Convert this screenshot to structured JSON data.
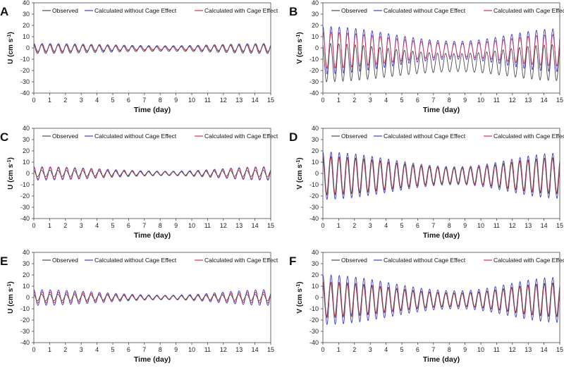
{
  "legend": [
    "Observed",
    "Calculated without Cage Effect",
    "Calculated with Cage Effect"
  ],
  "colors": {
    "observed": "#4d4d4d",
    "without": "#3b3bd6",
    "with": "#d8344f",
    "axis": "#444444"
  },
  "chart_data": [
    {
      "panel": "A",
      "type": "line",
      "xlabel": "Time (day)",
      "ylabel": "U (cm s-1)",
      "xlim": [
        0,
        15
      ],
      "ylim": [
        -40,
        40
      ],
      "xticks": [
        0,
        1,
        2,
        3,
        4,
        5,
        6,
        7,
        8,
        9,
        10,
        11,
        12,
        13,
        14,
        15
      ],
      "yticks": [
        -40,
        -30,
        -20,
        -10,
        0,
        10,
        20,
        30,
        40
      ],
      "series": [
        {
          "name": "Observed",
          "mean": -1,
          "amp_start": 4,
          "amp_mid": 2,
          "amp_end": 4,
          "period_days": 0.52
        },
        {
          "name": "Calculated without Cage Effect",
          "mean": 0,
          "amp_start": 4,
          "amp_mid": 2,
          "amp_end": 4,
          "period_days": 0.52
        },
        {
          "name": "Calculated with Cage Effect",
          "mean": 0,
          "amp_start": 3,
          "amp_mid": 1.5,
          "amp_end": 3,
          "period_days": 0.52
        }
      ]
    },
    {
      "panel": "B",
      "type": "line",
      "xlabel": "Time (day)",
      "ylabel": "V (cm s-1)",
      "xlim": [
        0,
        15
      ],
      "ylim": [
        -40,
        40
      ],
      "xticks": [
        0,
        1,
        2,
        3,
        4,
        5,
        6,
        7,
        8,
        9,
        10,
        11,
        12,
        13,
        14,
        15
      ],
      "yticks": [
        -40,
        -30,
        -20,
        -10,
        0,
        10,
        20,
        30,
        40
      ],
      "series": [
        {
          "name": "Observed",
          "mean": -13,
          "amp_start": 17,
          "amp_mid": 8,
          "amp_end": 16,
          "period_days": 0.52
        },
        {
          "name": "Calculated without Cage Effect",
          "mean": -2,
          "amp_start": 21,
          "amp_mid": 8,
          "amp_end": 19,
          "period_days": 0.52
        },
        {
          "name": "Calculated with Cage Effect",
          "mean": -2,
          "amp_start": 16,
          "amp_mid": 6,
          "amp_end": 14,
          "period_days": 0.52
        }
      ]
    },
    {
      "panel": "C",
      "type": "line",
      "xlabel": "Time (day)",
      "ylabel": "U (cm s-1)",
      "xlim": [
        0,
        15
      ],
      "ylim": [
        -40,
        40
      ],
      "xticks": [
        0,
        1,
        2,
        3,
        4,
        5,
        6,
        7,
        8,
        9,
        10,
        11,
        12,
        13,
        14,
        15
      ],
      "yticks": [
        -40,
        -30,
        -20,
        -10,
        0,
        10,
        20,
        30,
        40
      ],
      "series": [
        {
          "name": "Observed",
          "mean": 0,
          "amp_start": 3,
          "amp_mid": 1.5,
          "amp_end": 3,
          "period_days": 0.52
        },
        {
          "name": "Calculated without Cage Effect",
          "mean": 0,
          "amp_start": 6,
          "amp_mid": 2,
          "amp_end": 6,
          "period_days": 0.52
        },
        {
          "name": "Calculated with Cage Effect",
          "mean": 0,
          "amp_start": 5,
          "amp_mid": 1.5,
          "amp_end": 5,
          "period_days": 0.52
        }
      ]
    },
    {
      "panel": "D",
      "type": "line",
      "xlabel": "Time (day)",
      "ylabel": "V (cm s-1)",
      "xlim": [
        0,
        15
      ],
      "ylim": [
        -40,
        40
      ],
      "xticks": [
        0,
        1,
        2,
        3,
        4,
        5,
        6,
        7,
        8,
        9,
        10,
        11,
        12,
        13,
        14,
        15
      ],
      "yticks": [
        -40,
        -30,
        -20,
        -10,
        0,
        10,
        20,
        30,
        40
      ],
      "series": [
        {
          "name": "Observed",
          "mean": -2,
          "amp_start": 17,
          "amp_mid": 7,
          "amp_end": 16,
          "period_days": 0.52
        },
        {
          "name": "Calculated without Cage Effect",
          "mean": -2,
          "amp_start": 21,
          "amp_mid": 8,
          "amp_end": 20,
          "period_days": 0.52
        },
        {
          "name": "Calculated with Cage Effect",
          "mean": -2,
          "amp_start": 17,
          "amp_mid": 7,
          "amp_end": 16,
          "period_days": 0.52
        }
      ]
    },
    {
      "panel": "E",
      "type": "line",
      "xlabel": "Time (day)",
      "ylabel": "U (cm s-1)",
      "xlim": [
        0,
        15
      ],
      "ylim": [
        -40,
        40
      ],
      "xticks": [
        0,
        1,
        2,
        3,
        4,
        5,
        6,
        7,
        8,
        9,
        10,
        11,
        12,
        13,
        14,
        15
      ],
      "yticks": [
        -40,
        -30,
        -20,
        -10,
        0,
        10,
        20,
        30,
        40
      ],
      "series": [
        {
          "name": "Observed",
          "mean": 0,
          "amp_start": 3,
          "amp_mid": 1.5,
          "amp_end": 3,
          "period_days": 0.52
        },
        {
          "name": "Calculated without Cage Effect",
          "mean": 0,
          "amp_start": 7,
          "amp_mid": 2,
          "amp_end": 7,
          "period_days": 0.52
        },
        {
          "name": "Calculated with Cage Effect",
          "mean": 0,
          "amp_start": 5,
          "amp_mid": 1.5,
          "amp_end": 5,
          "period_days": 0.52
        }
      ]
    },
    {
      "panel": "F",
      "type": "line",
      "xlabel": "Time (day)",
      "ylabel": "V (cm s-1)",
      "xlim": [
        0,
        15
      ],
      "ylim": [
        -40,
        40
      ],
      "xticks": [
        0,
        1,
        2,
        3,
        4,
        5,
        6,
        7,
        8,
        9,
        10,
        11,
        12,
        13,
        14,
        15
      ],
      "yticks": [
        -40,
        -30,
        -20,
        -10,
        0,
        10,
        20,
        30,
        40
      ],
      "series": [
        {
          "name": "Observed",
          "mean": -2,
          "amp_start": 15,
          "amp_mid": 6,
          "amp_end": 15,
          "period_days": 0.52
        },
        {
          "name": "Calculated without Cage Effect",
          "mean": -2,
          "amp_start": 22,
          "amp_mid": 8,
          "amp_end": 20,
          "period_days": 0.52
        },
        {
          "name": "Calculated with Cage Effect",
          "mean": -2,
          "amp_start": 16,
          "amp_mid": 6,
          "amp_end": 15,
          "period_days": 0.52
        }
      ]
    }
  ]
}
